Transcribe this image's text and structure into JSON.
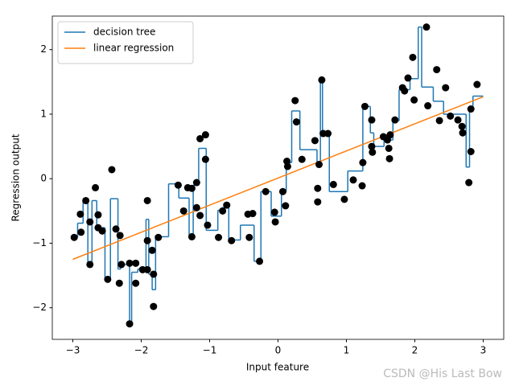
{
  "chart_data": {
    "type": "line",
    "xlabel": "Input feature",
    "ylabel": "Regression output",
    "xlim": [
      -3.3,
      3.3
    ],
    "ylim": [
      -2.49,
      2.52
    ],
    "xticks": [
      {
        "value": -3,
        "label": "−3"
      },
      {
        "value": -2,
        "label": "−2"
      },
      {
        "value": -1,
        "label": "−1"
      },
      0,
      1,
      2,
      3
    ],
    "yticks": [
      {
        "value": -2,
        "label": "−2"
      },
      {
        "value": -1,
        "label": "−1"
      },
      0,
      1,
      2
    ],
    "legend": "upper left",
    "watermark": "CSDN @His Last Bow",
    "series": [
      {
        "name": "decision tree",
        "type": "step",
        "color": "#1f77b4",
        "x": [
          -3.0,
          -2.93,
          -2.85,
          -2.78,
          -2.72,
          -2.65,
          -2.53,
          -2.45,
          -2.34,
          -2.3,
          -2.22,
          -2.17,
          -2.14,
          -2.05,
          -1.93,
          -1.89,
          -1.84,
          -1.79,
          -1.6,
          -1.45,
          -1.3,
          -1.24,
          -1.16,
          -1.05,
          -0.88,
          -0.82,
          -0.72,
          -0.55,
          -0.35,
          -0.25,
          -0.1,
          0.05,
          0.12,
          0.2,
          0.32,
          0.57,
          0.62,
          0.65,
          0.75,
          1.02,
          1.24,
          1.35,
          1.4,
          1.55,
          1.68,
          1.77,
          1.93,
          2.05,
          2.1,
          2.27,
          2.42,
          2.75,
          2.8,
          2.85,
          3.0
        ],
        "values": [
          -0.91,
          -0.69,
          -0.34,
          -1.33,
          -0.34,
          -0.76,
          -1.56,
          -0.31,
          -1.4,
          -1.33,
          -1.32,
          -2.25,
          -1.45,
          -1.4,
          -0.63,
          -1.48,
          -1.72,
          -0.9,
          -0.08,
          -0.3,
          -0.88,
          -0.1,
          0.47,
          -0.8,
          -0.49,
          -0.45,
          -0.95,
          -0.72,
          -1.28,
          -0.2,
          -0.58,
          -0.2,
          0.25,
          1.05,
          0.45,
          0.25,
          1.53,
          0.7,
          -0.2,
          0.12,
          1.12,
          0.71,
          0.5,
          0.6,
          0.9,
          1.38,
          1.55,
          2.35,
          1.42,
          1.2,
          1.0,
          0.18,
          1.1,
          1.28,
          1.28
        ]
      },
      {
        "name": "linear regression",
        "type": "line",
        "color": "#ff7f0e",
        "x": [
          -3.0,
          3.0
        ],
        "values": [
          -1.25,
          1.27
        ]
      },
      {
        "type": "scatter",
        "color": "#000000",
        "x": [
          -2.98,
          -2.88,
          -2.89,
          -2.81,
          -2.75,
          -2.75,
          -2.67,
          -2.63,
          -2.63,
          -2.57,
          -2.49,
          -2.43,
          -2.37,
          -2.32,
          -2.31,
          -2.29,
          -2.17,
          -2.17,
          -2.08,
          -2.08,
          -1.98,
          -1.91,
          -1.91,
          -1.91,
          -1.84,
          -1.82,
          -1.82,
          -1.75,
          -1.46,
          -1.38,
          -1.32,
          -1.26,
          -1.26,
          -1.19,
          -1.19,
          -1.14,
          -1.14,
          -1.06,
          -1.06,
          -1.03,
          -0.87,
          -0.81,
          -0.75,
          -0.68,
          -0.44,
          -0.42,
          -0.37,
          -0.27,
          -0.18,
          -0.05,
          -0.04,
          0.07,
          0.11,
          0.13,
          0.14,
          0.25,
          0.27,
          0.35,
          0.54,
          0.58,
          0.58,
          0.6,
          0.64,
          0.66,
          0.73,
          0.81,
          0.97,
          1.1,
          1.23,
          1.24,
          1.27,
          1.37,
          1.37,
          1.38,
          1.54,
          1.6,
          1.62,
          1.63,
          1.64,
          1.71,
          1.82,
          1.85,
          1.9,
          1.97,
          1.99,
          2.17,
          2.19,
          2.32,
          2.36,
          2.45,
          2.52,
          2.63,
          2.69,
          2.7,
          2.79,
          2.82,
          2.82,
          2.91
        ],
        "values": [
          -0.91,
          -0.83,
          -0.55,
          -0.34,
          -0.67,
          -1.33,
          -0.14,
          -0.56,
          -0.76,
          -0.81,
          -1.56,
          0.14,
          -0.78,
          -1.62,
          -0.88,
          -1.33,
          -1.31,
          -2.25,
          -1.31,
          -1.62,
          -1.41,
          -0.34,
          -0.96,
          -1.41,
          -1.11,
          -1.48,
          -1.98,
          -0.91,
          -0.1,
          -0.5,
          -0.14,
          -0.15,
          -0.9,
          -0.06,
          -0.45,
          0.62,
          -0.57,
          0.68,
          0.3,
          -0.72,
          -0.91,
          -0.5,
          -0.41,
          -0.96,
          -0.55,
          -0.91,
          -0.54,
          -1.28,
          -0.2,
          -0.52,
          -0.67,
          -0.2,
          -0.42,
          0.27,
          0.19,
          1.21,
          0.88,
          0.3,
          0.59,
          -0.15,
          -0.36,
          0.22,
          1.53,
          0.7,
          0.7,
          -0.09,
          -0.32,
          -0.02,
          -0.11,
          0.25,
          1.12,
          0.91,
          0.5,
          0.41,
          0.65,
          0.6,
          0.47,
          0.31,
          0.68,
          0.91,
          1.41,
          1.36,
          1.56,
          1.88,
          1.22,
          2.35,
          1.13,
          1.69,
          0.9,
          1.41,
          0.97,
          0.91,
          0.81,
          0.71,
          -0.06,
          1.08,
          0.42,
          1.46
        ]
      }
    ]
  }
}
